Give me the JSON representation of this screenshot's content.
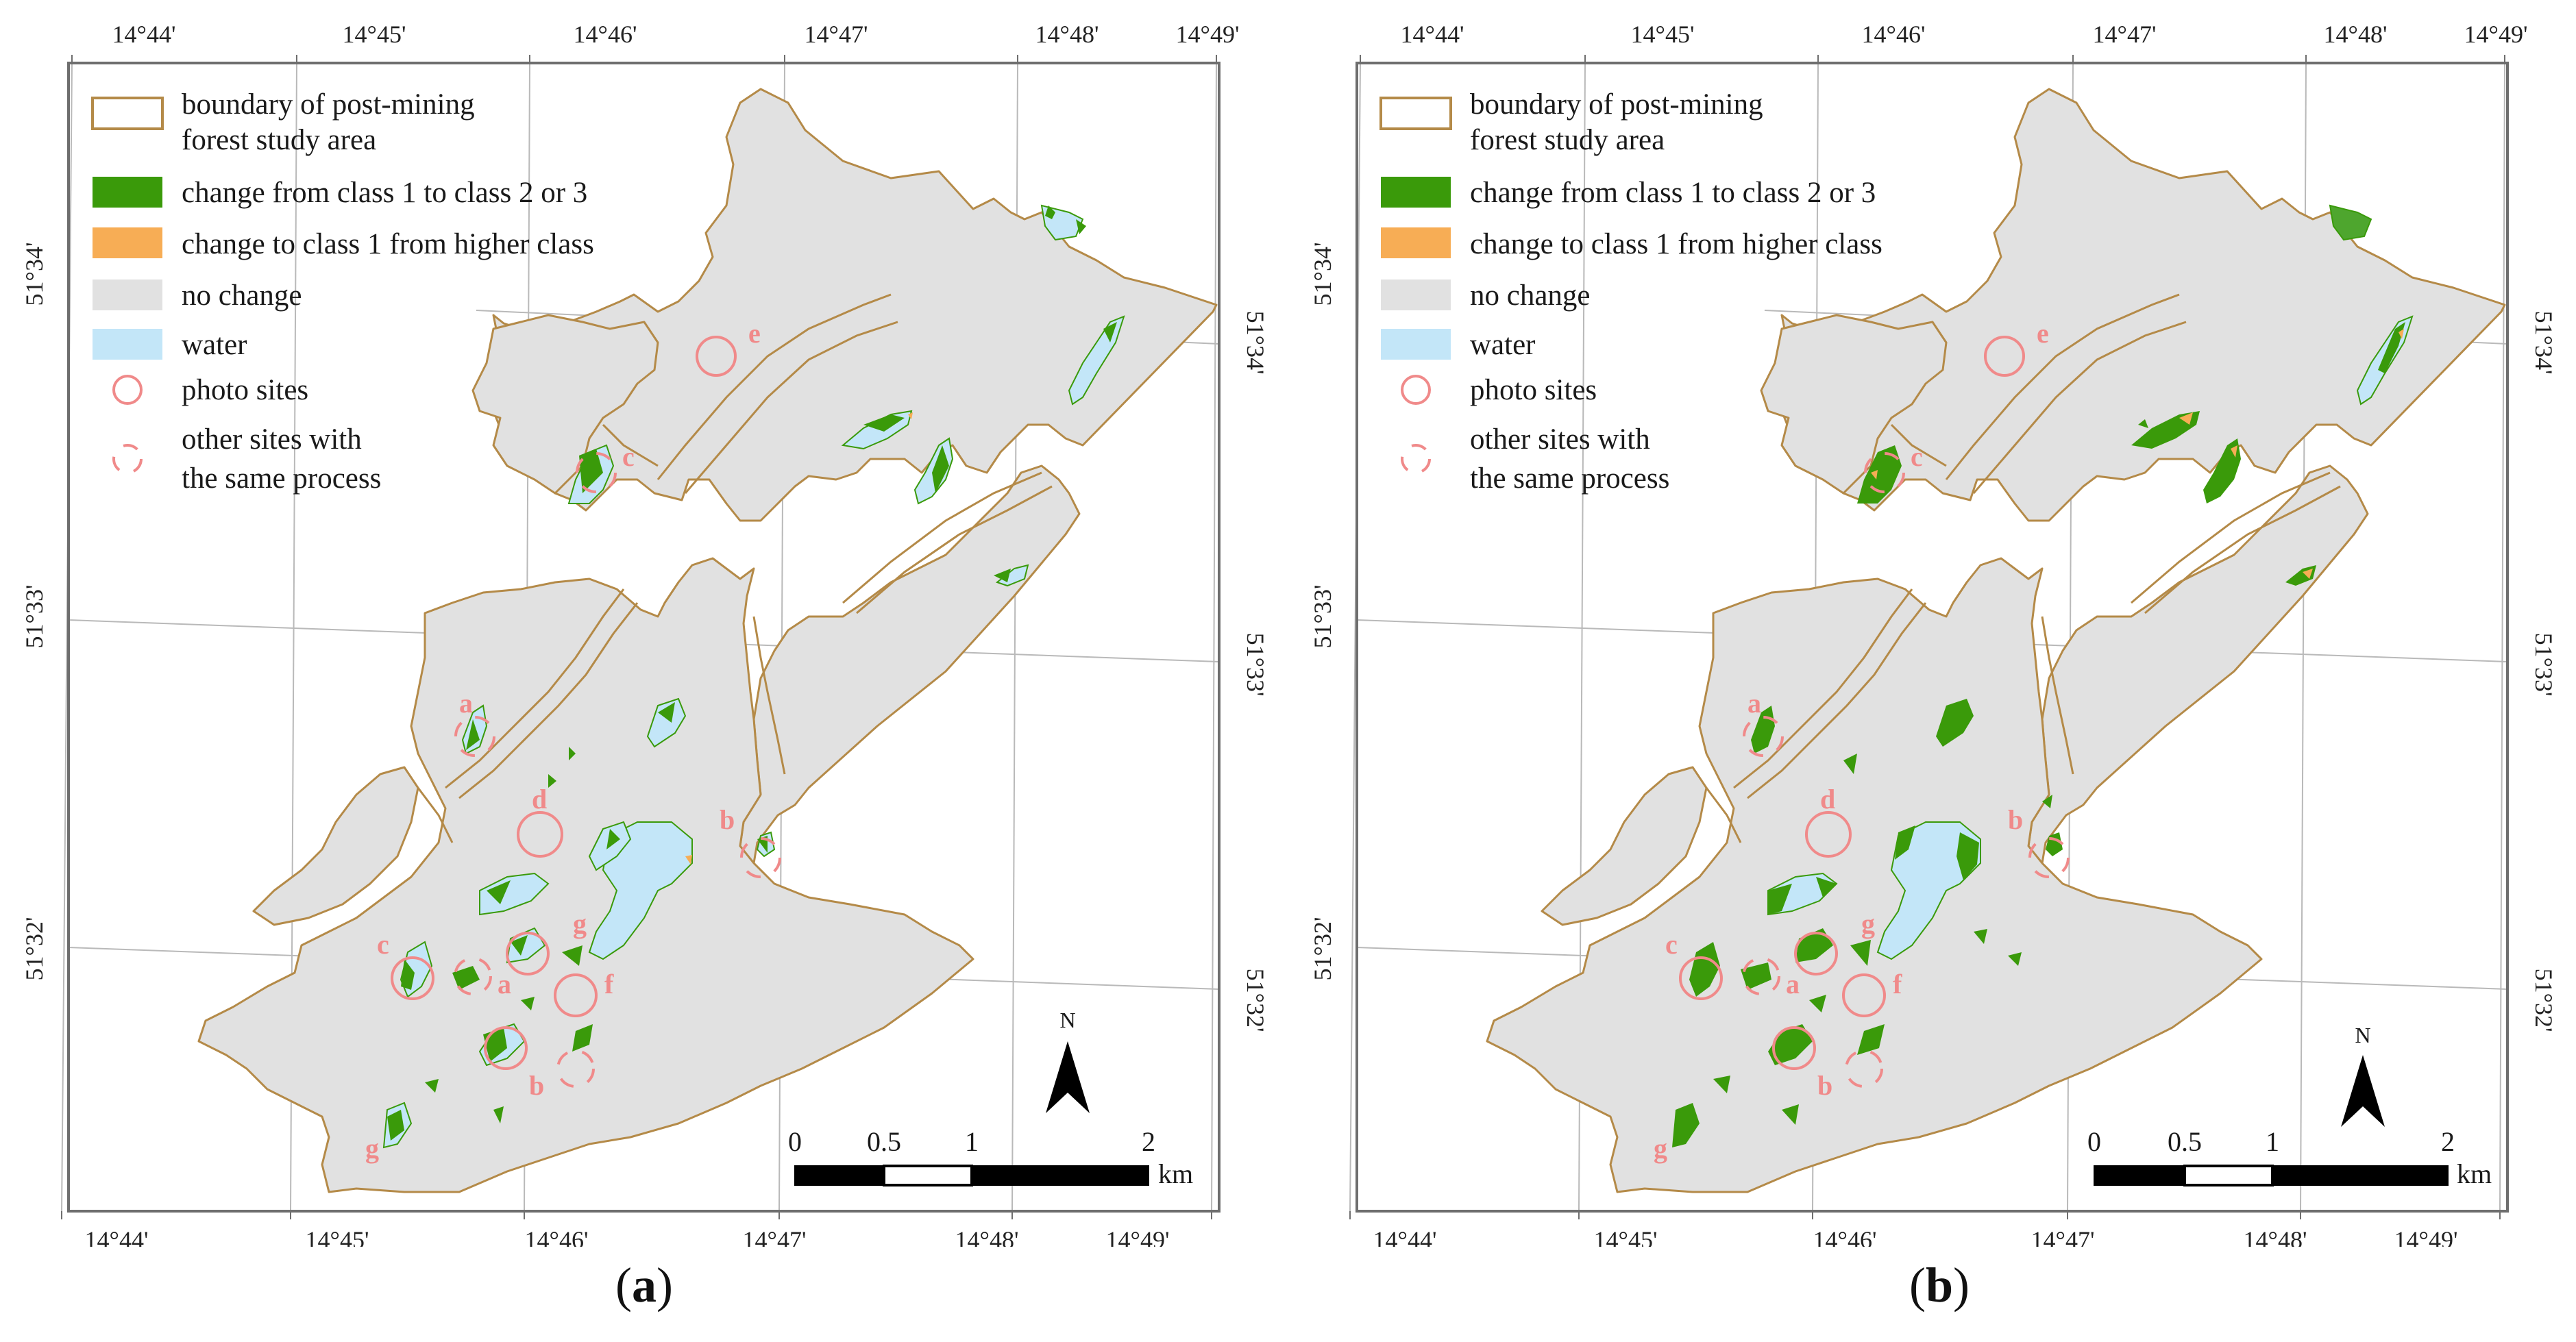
{
  "colors": {
    "boundary": "#b48a48",
    "change_1_to_2_or_3": "#3a9a0a",
    "change_to_1": "#f7ad55",
    "no_change": "#e1e1e1",
    "water": "#c3e6f8",
    "photo_site": "#f08a8a",
    "grid": "#b9b9b9",
    "frame": "#6e6e6e"
  },
  "coordinates": {
    "top": [
      "14°44'",
      "14°45'",
      "14°46'",
      "14°47'",
      "14°48'",
      "14°49'"
    ],
    "bottom": [
      "14°44'",
      "14°45'",
      "14°46'",
      "14°47'",
      "14°48'",
      "14°49'"
    ],
    "left": [
      "51°34'",
      "51°33'",
      "51°32'"
    ],
    "right": [
      "51°34'",
      "51°33'",
      "51°32'"
    ]
  },
  "legend": {
    "boundary": [
      "boundary of post-mining",
      "forest study area"
    ],
    "change_up": "change from class 1 to class 2 or 3",
    "change_down": "change to class 1 from higher class",
    "no_change": "no change",
    "water": "water",
    "photo_sites": "photo sites",
    "other_sites": [
      "other sites with",
      "the same process"
    ]
  },
  "north_label": "N",
  "scale": {
    "ticks": [
      "0",
      "0.5",
      "1",
      "2"
    ],
    "unit": "km"
  },
  "site_labels": [
    "e",
    "c",
    "a",
    "d",
    "b",
    "g",
    "c",
    "a",
    "f",
    "b",
    "g"
  ],
  "panels": [
    {
      "caption_open": "(",
      "caption_letter": "a",
      "caption_close": ")"
    },
    {
      "caption_open": "(",
      "caption_letter": "b",
      "caption_close": ")"
    }
  ]
}
